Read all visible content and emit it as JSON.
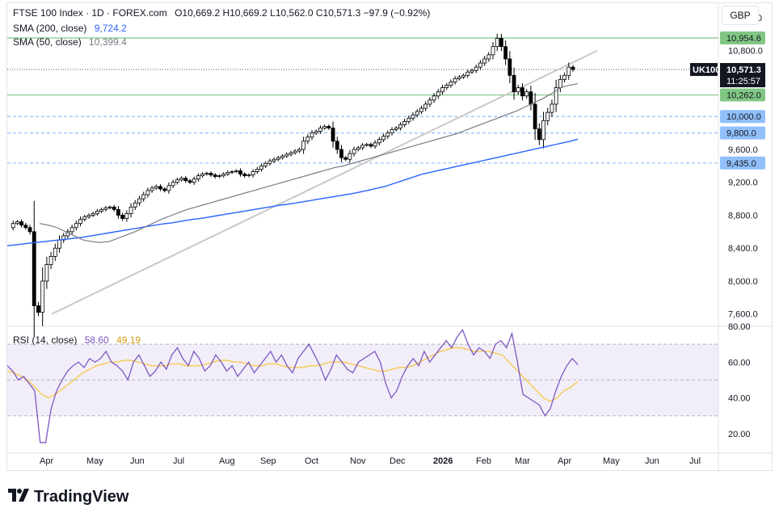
{
  "header": {
    "symbol_line": "FTSE 100 Index · 1D · FOREX.com",
    "ohlc_line": "O10,669.2  H10,669.2  L10,562.0  C10,571.3  −97.9 (−0.92%)",
    "sma200_label": "SMA (200, close)",
    "sma200_value": "9,724.2",
    "sma50_label": "SMA (50, close)",
    "sma50_value": "10,399.4",
    "currency": "GBP"
  },
  "rsi_legend": {
    "label": "RSI (14, close)",
    "value": "58.60",
    "ma_value": "49.19"
  },
  "branding": {
    "name": "TradingView"
  },
  "colors": {
    "sma200": "#2962ff",
    "sma50": "#787b86",
    "rsi": "#7e57c2",
    "rsi_ma": "#f7c843",
    "level_green": "#81c784",
    "level_blue": "#90bff9",
    "candle": "#000000"
  },
  "chart_data": [
    {
      "type": "line",
      "title": "FTSE 100 Index · 1D · FOREX.com",
      "price_ylim": [
        7450,
        11200
      ],
      "yticks": [
        "11,200.0",
        "10,800.0",
        "9,600.0",
        "9,200.0",
        "8,800.0",
        "8,400.0",
        "8,000.0",
        "7,600.0"
      ],
      "xticks": [
        "Apr",
        "May",
        "Jun",
        "Jul",
        "Aug",
        "Sep",
        "Oct",
        "Nov",
        "Dec",
        "2026",
        "Feb",
        "Mar",
        "Apr",
        "May",
        "Jun",
        "Jul"
      ],
      "series": [
        {
          "name": "FTSE 100 Index",
          "values": [
            8650,
            8700,
            8720,
            8680,
            8650,
            8600,
            7700,
            7620,
            8000,
            8200,
            8300,
            8400,
            8500,
            8550,
            8600,
            8650,
            8700,
            8750,
            8780,
            8800,
            8820,
            8850,
            8870,
            8890,
            8900,
            8870,
            8800,
            8760,
            8820,
            8900,
            8950,
            9000,
            9050,
            9100,
            9130,
            9150,
            9120,
            9100,
            9160,
            9200,
            9230,
            9250,
            9220,
            9200,
            9240,
            9280,
            9300,
            9310,
            9290,
            9270,
            9280,
            9300,
            9320,
            9330,
            9340,
            9300,
            9280,
            9290,
            9330,
            9360,
            9400,
            9430,
            9460,
            9480,
            9500,
            9520,
            9540,
            9560,
            9580,
            9600,
            9700,
            9750,
            9800,
            9820,
            9860,
            9880,
            9860,
            9700,
            9600,
            9500,
            9480,
            9550,
            9600,
            9620,
            9650,
            9660,
            9640,
            9680,
            9720,
            9760,
            9800,
            9840,
            9860,
            9900,
            9940,
            9980,
            10020,
            10060,
            10100,
            10150,
            10200,
            10250,
            10300,
            10350,
            10380,
            10420,
            10460,
            10480,
            10500,
            10540,
            10560,
            10600,
            10650,
            10700,
            10750,
            10850,
            10950,
            10850,
            10700,
            10500,
            10300,
            10350,
            10250,
            10300,
            10150,
            9850,
            9720,
            9950,
            10050,
            10150,
            10350,
            10450,
            10500,
            10600,
            10571.3
          ]
        },
        {
          "name": "SMA (200, close)",
          "values": [
            8430,
            8440,
            8450,
            8460,
            8470,
            8480,
            8490,
            8500,
            8510,
            8520,
            8530,
            8545,
            8560,
            8575,
            8590,
            8605,
            8620,
            8635,
            8650,
            8665,
            8680,
            8695,
            8705,
            8720,
            8735,
            8750,
            8760,
            8775,
            8790,
            8805,
            8820,
            8835,
            8850,
            8865,
            8880,
            8895,
            8910,
            8925,
            8935,
            8950,
            8965,
            8980,
            8995,
            9010,
            9025,
            9040,
            9055,
            9070,
            9090,
            9110,
            9130,
            9150,
            9180,
            9210,
            9240,
            9270,
            9300,
            9320,
            9340,
            9360,
            9380,
            9400,
            9420,
            9440,
            9460,
            9480,
            9500,
            9520,
            9540,
            9560,
            9580,
            9600,
            9620,
            9640,
            9660,
            9680,
            9700,
            9724.2
          ]
        },
        {
          "name": "SMA (50, close)",
          "values": [
            8700,
            8680,
            8650,
            8600,
            8550,
            8500,
            8480,
            8470,
            8480,
            8520,
            8560,
            8600,
            8650,
            8700,
            8750,
            8790,
            8830,
            8870,
            8900,
            8930,
            8960,
            8990,
            9020,
            9050,
            9080,
            9110,
            9140,
            9170,
            9200,
            9230,
            9260,
            9290,
            9320,
            9350,
            9380,
            9400,
            9430,
            9460,
            9490,
            9520,
            9550,
            9580,
            9610,
            9640,
            9670,
            9700,
            9730,
            9760,
            9790,
            9830,
            9870,
            9910,
            9950,
            9990,
            10030,
            10070,
            10120,
            10170,
            10220,
            10280,
            10350,
            10380,
            10399.4
          ]
        }
      ],
      "levels": [
        {
          "label": "10,954.6",
          "value": 10954.6,
          "color": "#81c784"
        },
        {
          "label": "10,262.0",
          "value": 10262.0,
          "color": "#81c784"
        },
        {
          "label": "10,000.0",
          "value": 10000.0,
          "color": "#90bff9"
        },
        {
          "label": "9,800.0",
          "value": 9800.0,
          "color": "#90bff9"
        },
        {
          "label": "9,435.0",
          "value": 9435.0,
          "color": "#90bff9"
        }
      ],
      "current_price": {
        "symbol": "UK100",
        "price": "10,571.3",
        "countdown": "11:25:57"
      }
    },
    {
      "type": "line",
      "title": "RSI (14, close)",
      "ylim": [
        10,
        80
      ],
      "yticks": [
        "80.00",
        "60.00",
        "40.00",
        "20.00"
      ],
      "band": [
        30,
        70
      ],
      "series": [
        {
          "name": "RSI",
          "values": [
            58,
            55,
            50,
            52,
            48,
            44,
            15,
            15,
            34,
            44,
            50,
            55,
            58,
            60,
            57,
            62,
            60,
            62,
            66,
            60,
            58,
            55,
            50,
            60,
            64,
            58,
            52,
            55,
            60,
            56,
            64,
            68,
            62,
            58,
            66,
            62,
            55,
            58,
            64,
            60,
            55,
            58,
            52,
            56,
            60,
            54,
            58,
            62,
            66,
            60,
            64,
            58,
            54,
            62,
            66,
            70,
            64,
            58,
            50,
            56,
            64,
            60,
            56,
            54,
            60,
            62,
            64,
            66,
            60,
            48,
            40,
            44,
            52,
            58,
            62,
            58,
            66,
            60,
            64,
            68,
            72,
            68,
            74,
            78,
            70,
            64,
            68,
            66,
            62,
            70,
            72,
            68,
            76,
            60,
            42,
            40,
            38,
            36,
            30,
            34,
            44,
            52,
            58,
            62,
            58.6
          ]
        },
        {
          "name": "RSI MA",
          "values": [
            55,
            54,
            52,
            50,
            46,
            42,
            40,
            42,
            45,
            48,
            51,
            54,
            56,
            58,
            59,
            60,
            60,
            61,
            61,
            60,
            59,
            58,
            58,
            58,
            59,
            59,
            58,
            58,
            58,
            59,
            60,
            61,
            61,
            60,
            60,
            59,
            58,
            58,
            59,
            59,
            58,
            57,
            57,
            57,
            58,
            58,
            59,
            60,
            60,
            60,
            59,
            58,
            57,
            56,
            55,
            55,
            56,
            57,
            57,
            58,
            60,
            62,
            64,
            66,
            67,
            68,
            68,
            67,
            66,
            66,
            66,
            65,
            64,
            60,
            56,
            52,
            48,
            44,
            40,
            38,
            40,
            44,
            46,
            49.19
          ]
        }
      ]
    }
  ]
}
